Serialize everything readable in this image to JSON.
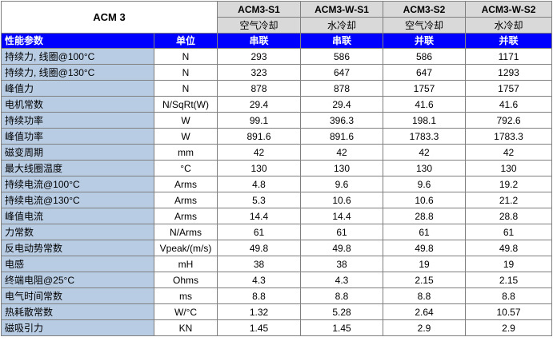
{
  "table": {
    "title": "ACM 3",
    "models": [
      "ACM3-S1",
      "ACM3-W-S1",
      "ACM3-S2",
      "ACM3-W-S2"
    ],
    "cooling": [
      "空气冷却",
      "水冷却",
      "空气冷却",
      "水冷却"
    ],
    "header": {
      "param": "性能参数",
      "unit": "单位",
      "connections": [
        "串联",
        "串联",
        "并联",
        "并联"
      ]
    },
    "rows": [
      {
        "name": "持续力, 线圈@100°C",
        "unit": "N",
        "values": [
          "293",
          "586",
          "586",
          "1171"
        ]
      },
      {
        "name": "持续力, 线圈@130°C",
        "unit": "N",
        "values": [
          "323",
          "647",
          "647",
          "1293"
        ]
      },
      {
        "name": "峰值力",
        "unit": "N",
        "values": [
          "878",
          "878",
          "1757",
          "1757"
        ]
      },
      {
        "name": "电机常数",
        "unit": "N/SqRt(W)",
        "values": [
          "29.4",
          "29.4",
          "41.6",
          "41.6"
        ]
      },
      {
        "name": "持续功率",
        "unit": "W",
        "values": [
          "99.1",
          "396.3",
          "198.1",
          "792.6"
        ]
      },
      {
        "name": "峰值功率",
        "unit": "W",
        "values": [
          "891.6",
          "891.6",
          "1783.3",
          "1783.3"
        ]
      },
      {
        "name": "磁变周期",
        "unit": "mm",
        "values": [
          "42",
          "42",
          "42",
          "42"
        ]
      },
      {
        "name": "最大线圈温度",
        "unit": "°C",
        "values": [
          "130",
          "130",
          "130",
          "130"
        ]
      },
      {
        "name": "持续电流@100°C",
        "unit": "Arms",
        "values": [
          "4.8",
          "9.6",
          "9.6",
          "19.2"
        ]
      },
      {
        "name": "持续电流@130°C",
        "unit": "Arms",
        "values": [
          "5.3",
          "10.6",
          "10.6",
          "21.2"
        ]
      },
      {
        "name": "峰值电流",
        "unit": "Arms",
        "values": [
          "14.4",
          "14.4",
          "28.8",
          "28.8"
        ]
      },
      {
        "name": "力常数",
        "unit": "N/Arms",
        "values": [
          "61",
          "61",
          "61",
          "61"
        ]
      },
      {
        "name": "反电动势常数",
        "unit": "Vpeak/(m/s)",
        "values": [
          "49.8",
          "49.8",
          "49.8",
          "49.8"
        ]
      },
      {
        "name": "电感",
        "unit": "mH",
        "values": [
          "38",
          "38",
          "19",
          "19"
        ]
      },
      {
        "name": "终端电阻@25°C",
        "unit": "Ohms",
        "values": [
          "4.3",
          "4.3",
          "2.15",
          "2.15"
        ]
      },
      {
        "name": "电气时间常数",
        "unit": "ms",
        "values": [
          "8.8",
          "8.8",
          "8.8",
          "8.8"
        ]
      },
      {
        "name": "热耗散常数",
        "unit": "W/°C",
        "values": [
          "1.32",
          "5.28",
          "2.64",
          "10.57"
        ]
      },
      {
        "name": "磁吸引力",
        "unit": "KN",
        "values": [
          "1.45",
          "1.45",
          "2.9",
          "2.9"
        ]
      }
    ]
  }
}
